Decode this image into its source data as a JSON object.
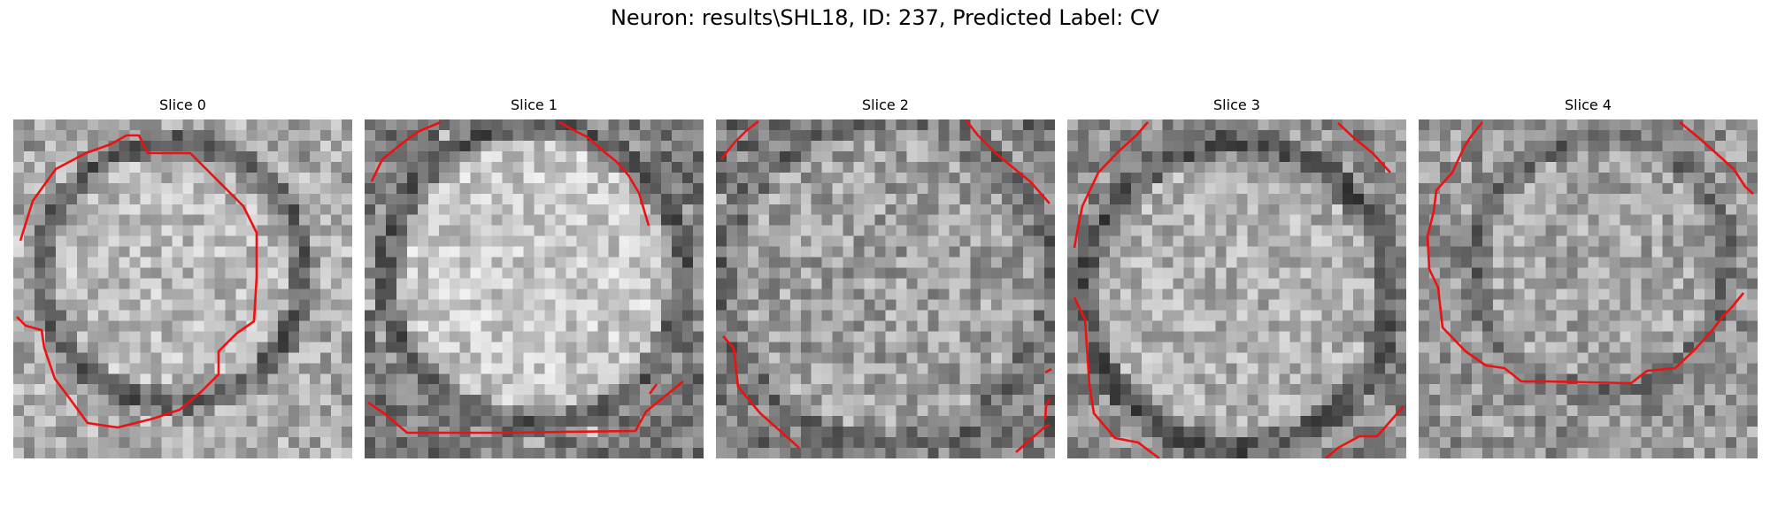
{
  "figure": {
    "title": "Neuron: results\\SHL18, ID: 237, Predicted Label: CV"
  },
  "slices": [
    {
      "title": "Slice 0"
    },
    {
      "title": "Slice 1"
    },
    {
      "title": "Slice 2"
    },
    {
      "title": "Slice 3"
    },
    {
      "title": "Slice 4"
    }
  ],
  "colors": {
    "contour": "#ee1111",
    "background": "#ffffff"
  }
}
